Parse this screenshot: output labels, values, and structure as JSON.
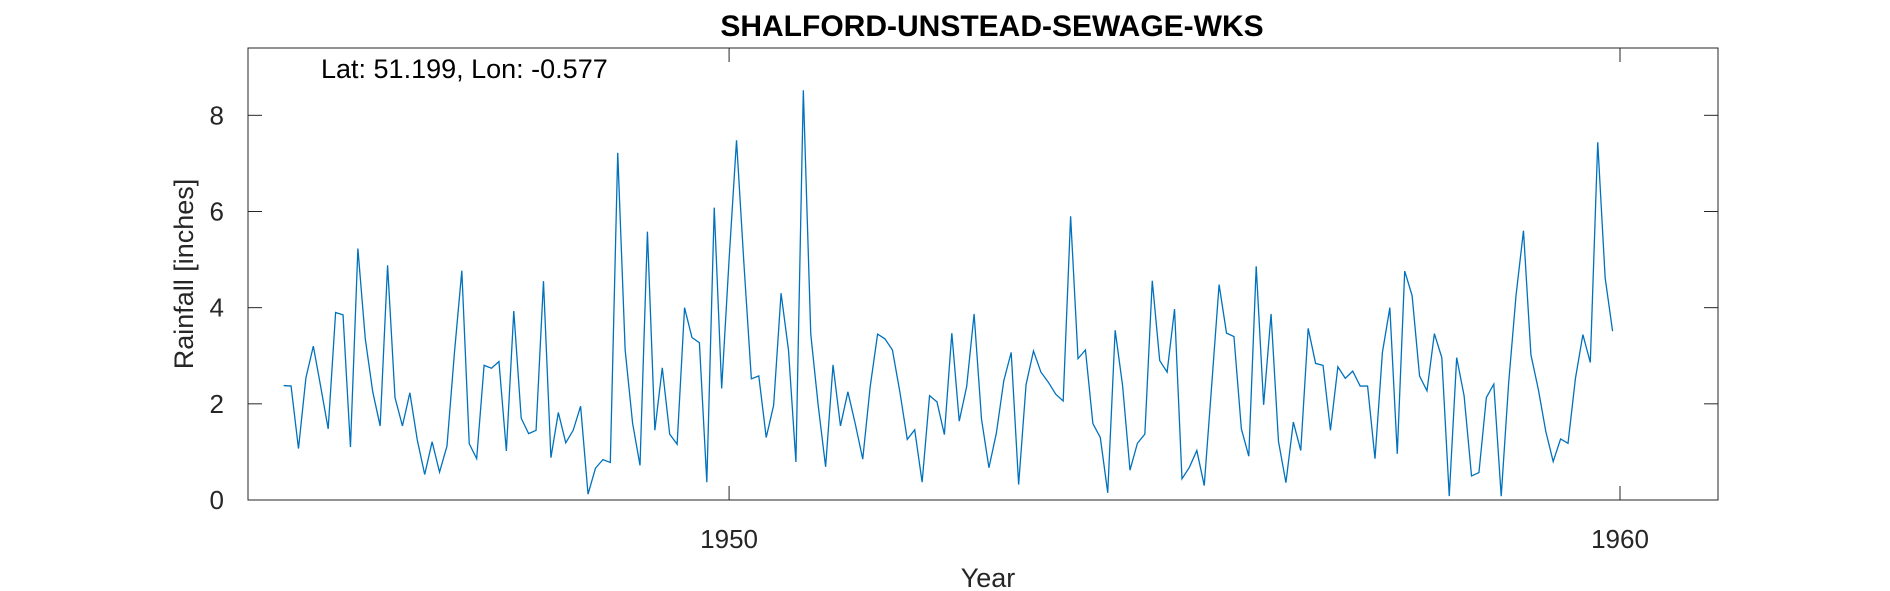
{
  "chart_data": {
    "type": "line",
    "title": "SHALFORD-UNSTEAD-SEWAGE-WKS",
    "annotation": "Lat: 51.199, Lon: -0.577",
    "xlabel": "Year",
    "ylabel": "Rainfall [inches]",
    "xlim": [
      1944.6,
      1961.1
    ],
    "ylim": [
      0,
      9.4
    ],
    "x_ticks": [
      1950,
      1960
    ],
    "y_ticks": [
      0,
      2,
      4,
      6,
      8
    ],
    "grid": false,
    "series": [
      {
        "color": "#0072BD",
        "start_year": 1945.0,
        "step_months": 1,
        "values": [
          2.38,
          2.37,
          1.07,
          2.54,
          3.2,
          2.35,
          1.48,
          3.9,
          3.85,
          1.1,
          5.23,
          3.35,
          2.25,
          1.54,
          4.88,
          2.13,
          1.54,
          2.23,
          1.25,
          0.53,
          1.21,
          0.58,
          1.12,
          3.05,
          4.77,
          1.17,
          0.86,
          2.8,
          2.74,
          2.88,
          1.02,
          3.93,
          1.7,
          1.38,
          1.45,
          4.55,
          0.88,
          1.82,
          1.19,
          1.45,
          1.95,
          0.12,
          0.66,
          0.84,
          0.78,
          7.22,
          3.12,
          1.6,
          0.72,
          5.58,
          1.45,
          2.75,
          1.37,
          1.16,
          4.0,
          3.38,
          3.27,
          0.37,
          6.08,
          2.32,
          5.0,
          7.48,
          4.91,
          2.52,
          2.58,
          1.3,
          1.97,
          4.3,
          3.12,
          0.79,
          8.52,
          3.45,
          1.97,
          0.69,
          2.81,
          1.54,
          2.25,
          1.58,
          0.85,
          2.35,
          3.45,
          3.35,
          3.12,
          2.25,
          1.26,
          1.46,
          0.37,
          2.17,
          2.04,
          1.36,
          3.47,
          1.64,
          2.36,
          3.87,
          1.68,
          0.67,
          1.39,
          2.48,
          3.07,
          0.32,
          2.4,
          3.1,
          2.66,
          2.45,
          2.2,
          2.06,
          5.9,
          2.94,
          3.12,
          1.59,
          1.3,
          0.15,
          3.53,
          2.38,
          0.62,
          1.18,
          1.37,
          4.56,
          2.9,
          2.66,
          3.97,
          0.44,
          0.68,
          1.03,
          0.3,
          2.38,
          4.48,
          3.47,
          3.4,
          1.48,
          0.91,
          4.86,
          1.98,
          3.87,
          1.22,
          0.36,
          1.62,
          1.03,
          3.57,
          2.84,
          2.8,
          1.45,
          2.77,
          2.53,
          2.68,
          2.37,
          2.37,
          0.86,
          3.07,
          4.0,
          0.96,
          4.76,
          4.25,
          2.58,
          2.27,
          3.46,
          2.96,
          0.08,
          2.96,
          2.17,
          0.5,
          0.57,
          2.13,
          2.41,
          0.08,
          2.43,
          4.26,
          5.6,
          3.02,
          2.3,
          1.43,
          0.8,
          1.27,
          1.18,
          2.53,
          3.44,
          2.86,
          7.44,
          4.62,
          3.51
        ]
      }
    ]
  }
}
